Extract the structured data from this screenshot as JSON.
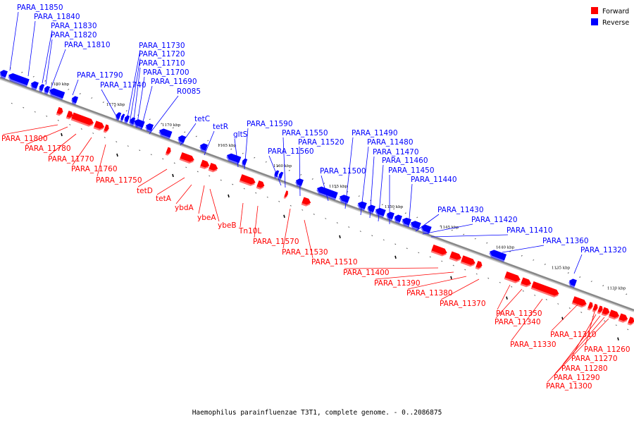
{
  "caption": "Haemophilus parainfluenzae T3T1, complete genome. - 0..2086875",
  "legend": [
    {
      "label": "Forward",
      "color": "#ff0000"
    },
    {
      "label": "Reverse",
      "color": "#0000ff"
    }
  ],
  "colors": {
    "forward": "#ff0000",
    "reverse": "#0000ff",
    "backbone": "#888888"
  },
  "scale_marks": [
    {
      "text": "1180 kbp",
      "pos": 1180
    },
    {
      "text": "1175 kbp",
      "pos": 1175
    },
    {
      "text": "1170 kbp",
      "pos": 1170
    },
    {
      "text": "1165 kbp",
      "pos": 1165
    },
    {
      "text": "1160 kbp",
      "pos": 1160
    },
    {
      "text": "1155 kbp",
      "pos": 1155
    },
    {
      "text": "1150 kbp",
      "pos": 1150
    },
    {
      "text": "1145 kbp",
      "pos": 1145
    },
    {
      "text": "1140 kbp",
      "pos": 1140
    },
    {
      "text": "1135 kbp",
      "pos": 1135
    },
    {
      "text": "1130 kbp",
      "pos": 1130
    }
  ],
  "reverse_labels": [
    "PARA_11850",
    "PARA_11840",
    "PARA_11830",
    "PARA_11820",
    "PARA_11810",
    "PARA_11790",
    "PARA_11740",
    "PARA_11730",
    "PARA_11720",
    "PARA_11710",
    "PARA_11700",
    "PARA_11690",
    "R0085",
    "tetC",
    "tetR",
    "gltS",
    "PARA_11590",
    "PARA_11560",
    "PARA_11550",
    "PARA_11520",
    "PARA_11500",
    "PARA_11490",
    "PARA_11480",
    "PARA_11470",
    "PARA_11460",
    "PARA_11450",
    "PARA_11440",
    "PARA_11430",
    "PARA_11420",
    "PARA_11410",
    "PARA_11360",
    "PARA_11320"
  ],
  "forward_labels": [
    "PARA_11800",
    "PARA_11780",
    "PARA_11770",
    "PARA_11760",
    "PARA_11750",
    "tetD",
    "tetA",
    "ybdA",
    "ybeA",
    "ybeB",
    "Tn10L",
    "PARA_11570",
    "PARA_11530",
    "PARA_11510",
    "PARA_11400",
    "PARA_11390",
    "PARA_11380",
    "PARA_11370",
    "PARA_11350",
    "PARA_11340",
    "PARA_11330",
    "PARA_11310",
    "PARA_11260",
    "PARA_11270",
    "PARA_11280",
    "PARA_11290",
    "PARA_11300"
  ]
}
